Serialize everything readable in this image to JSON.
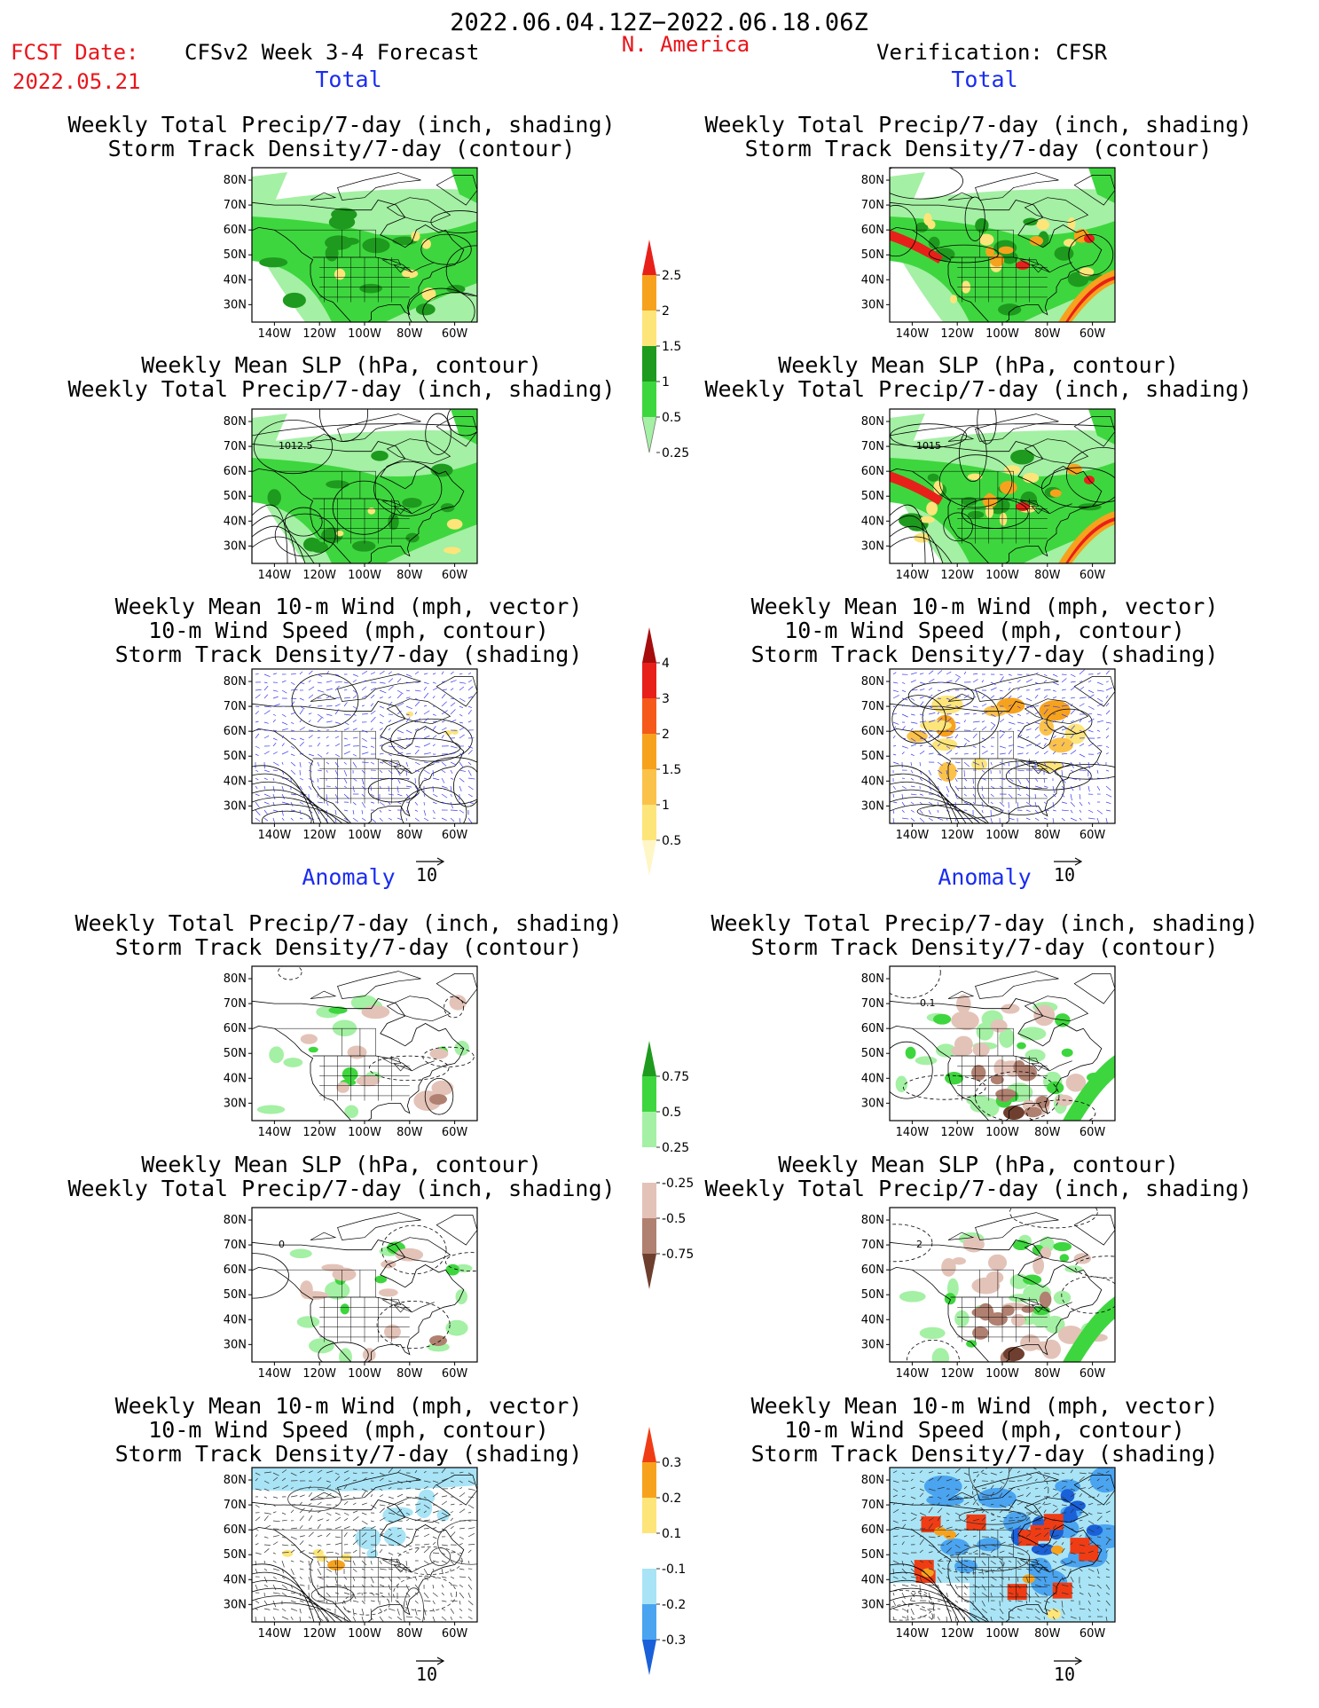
{
  "header": {
    "period": "2022.06.04.12Z−2022.06.18.06Z",
    "fcst_label": "FCST Date:",
    "fcst_date": "2022.05.21",
    "model": "CFSv2 Week 3-4 Forecast",
    "region": "N. America",
    "verification": "Verification: CFSR"
  },
  "sections": {
    "total": "Total",
    "anomaly": "Anomaly"
  },
  "panel_titles": {
    "precip_storm": [
      "Weekly Total Precip/7-day (inch, shading)",
      "Storm Track Density/7-day (contour)"
    ],
    "slp_precip": [
      "Weekly Mean SLP (hPa, contour)",
      "Weekly Total Precip/7-day (inch, shading)"
    ],
    "wind_storm": [
      "Weekly Mean 10-m Wind (mph, vector)",
      "10-m Wind Speed (mph, contour)",
      "Storm Track Density/7-day (shading)"
    ]
  },
  "axes": {
    "lat_labels": [
      "80N",
      "70N",
      "60N",
      "50N",
      "40N",
      "30N"
    ],
    "lon_labels": [
      "140W",
      "120W",
      "100W",
      "80W",
      "60W"
    ]
  },
  "contour_labels": {
    "fcst_slp_total": "1012.5",
    "cfsr_slp_total": "1015",
    "cfsr_precip_anom": "-0.1",
    "slp_anom_zero": "0",
    "cfsr_slp_anom": "2"
  },
  "vector_ref": "10",
  "colorbars": {
    "precip_total": {
      "labels": [
        "2.5",
        "2",
        "1.5",
        "1",
        "0.5",
        "0.25"
      ],
      "colors": [
        "#e8201a",
        "#f7a21d",
        "#fde57a",
        "#1e9a1e",
        "#3ed63e",
        "#a4f0a4"
      ]
    },
    "storm_total": {
      "labels": [
        "4",
        "3",
        "2",
        "1.5",
        "1",
        "0.5"
      ],
      "colors": [
        "#a60c0c",
        "#e8201a",
        "#f55a1a",
        "#f7a21d",
        "#fbc24a",
        "#fde57a",
        "#fff6c6"
      ]
    },
    "precip_anom": {
      "labels": [
        "0.75",
        "0.5",
        "0.25",
        "-0.25",
        "-0.5",
        "-0.75"
      ],
      "colors": [
        "#1e9a1e",
        "#3ed63e",
        "#a4f0a4",
        "#ffffff",
        "#e3c3b8",
        "#b08070",
        "#6e3f2e"
      ]
    },
    "storm_anom": {
      "labels": [
        "0.3",
        "0.2",
        "0.1",
        "-0.1",
        "-0.2",
        "-0.3"
      ],
      "colors": [
        "#f03c14",
        "#f7a21d",
        "#fde57a",
        "#ffffff",
        "#a8e4f6",
        "#4aa4f0",
        "#1a60d8"
      ]
    }
  }
}
